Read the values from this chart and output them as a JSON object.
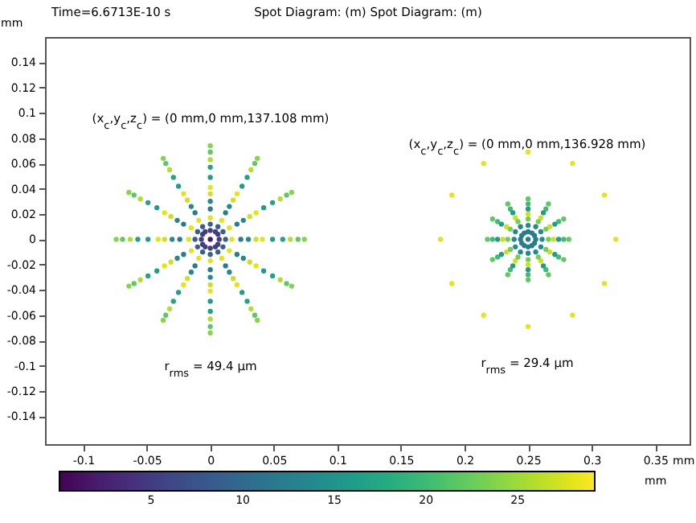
{
  "chart_data": {
    "type": "scatter",
    "title": "Spot Diagram: (m)  Spot Diagram: (m)",
    "xlabel": "mm",
    "ylabel": "mm",
    "clabel": "mm",
    "xlim": [
      -0.13,
      0.377
    ],
    "ylim": [
      -0.162,
      0.16
    ],
    "xticks": [
      -0.1,
      -0.05,
      0,
      0.05,
      0.1,
      0.15,
      0.2,
      0.25,
      0.3,
      0.35
    ],
    "yticks": [
      -0.14,
      -0.12,
      -0.1,
      -0.08,
      -0.06,
      -0.04,
      -0.02,
      0,
      0.02,
      0.04,
      0.06,
      0.08,
      0.1,
      0.12,
      0.14
    ],
    "clim": [
      0,
      29.2
    ],
    "cticks": [
      5,
      10,
      15,
      20,
      25
    ],
    "marker": "circle",
    "annotations": [
      "Time=6.6713E-10 s",
      "(x$_{c}$,y$_{c}$,z$_{c}$) = (0 mm,0 mm,137.108 mm)",
      "r$_{rms}$ = 49.4 µm",
      "(x$_{c}$,y$_{c}$,z$_{c}$) = (0 mm,0 mm,136.928 mm)",
      "r$_{rms}$ = 29.4 µm"
    ],
    "series": [
      {
        "color": "#86d549",
        "x": [
          0.074,
          0.064,
          0.037,
          0,
          -0.037,
          -0.064,
          -0.074,
          -0.064,
          -0.037,
          0,
          0.037,
          0.064
        ],
        "values": [
          0,
          0.037,
          0.064,
          0.074,
          0.064,
          0.037,
          0,
          -0.037,
          -0.064,
          -0.074,
          -0.064,
          -0.037
        ]
      },
      {
        "color": "#5ec962",
        "x": [
          0.069,
          0.06,
          0.035,
          0,
          -0.035,
          -0.06,
          -0.069,
          -0.06,
          -0.035,
          0,
          0.035,
          0.06
        ],
        "values": [
          0,
          0.035,
          0.06,
          0.069,
          0.06,
          0.035,
          0,
          -0.035,
          -0.06,
          -0.069,
          -0.06,
          -0.035
        ]
      },
      {
        "color": "#b5de2b",
        "x": [
          0.063,
          0.055,
          0.032,
          0,
          -0.032,
          -0.055,
          -0.063,
          -0.055,
          -0.032,
          0,
          0.032,
          0.055
        ],
        "values": [
          0,
          0.032,
          0.055,
          0.063,
          0.055,
          0.032,
          0,
          -0.032,
          -0.055,
          -0.063,
          -0.055,
          -0.032
        ]
      },
      {
        "color": "#20a386",
        "x": [
          0.057,
          0.049,
          0.029,
          0,
          -0.029,
          -0.049,
          -0.057,
          -0.049,
          -0.029,
          0,
          0.029,
          0.049
        ],
        "values": [
          0,
          0.029,
          0.049,
          0.057,
          0.049,
          0.029,
          0,
          -0.029,
          -0.049,
          -0.057,
          -0.049,
          -0.029
        ]
      },
      {
        "color": "#1f9d8a",
        "x": [
          0.049,
          0.042,
          0.025,
          0,
          -0.025,
          -0.042,
          -0.049,
          -0.042,
          -0.025,
          0,
          0.025,
          0.042
        ],
        "values": [
          0,
          0.025,
          0.042,
          0.049,
          0.042,
          0.025,
          0,
          -0.025,
          -0.042,
          -0.049,
          -0.042,
          -0.025
        ]
      },
      {
        "color": "#e5e419",
        "x": [
          0.041,
          0.036,
          0.021,
          0,
          -0.021,
          -0.036,
          -0.041,
          -0.036,
          -0.021,
          0,
          0.021,
          0.036
        ],
        "values": [
          0,
          0.021,
          0.036,
          0.041,
          0.036,
          0.021,
          0,
          -0.021,
          -0.036,
          -0.041,
          -0.036,
          -0.021
        ]
      },
      {
        "color": "#cde11d",
        "x": [
          0.036,
          0.031,
          0.018,
          0,
          -0.018,
          -0.031,
          -0.036,
          -0.031,
          -0.018,
          0,
          0.018,
          0.031
        ],
        "values": [
          0,
          0.018,
          0.031,
          0.036,
          0.031,
          0.018,
          0,
          -0.018,
          -0.031,
          -0.036,
          -0.031,
          -0.018
        ]
      },
      {
        "color": "#238a8d",
        "x": [
          0.03,
          0.026,
          0.015,
          0,
          -0.015,
          -0.026,
          -0.03,
          -0.026,
          -0.015,
          0,
          0.015,
          0.026
        ],
        "values": [
          0,
          0.015,
          0.026,
          0.03,
          0.026,
          0.015,
          0,
          -0.015,
          -0.026,
          -0.03,
          -0.026,
          -0.015
        ]
      },
      {
        "color": "#297b8e",
        "x": [
          0.024,
          0.021,
          0.012,
          0,
          -0.012,
          -0.021,
          -0.024,
          -0.021,
          -0.012,
          0,
          0.012,
          0.021
        ],
        "values": [
          0,
          0.012,
          0.021,
          0.024,
          0.021,
          0.012,
          0,
          -0.012,
          -0.021,
          -0.024,
          -0.021,
          -0.012
        ]
      },
      {
        "color": "#e5e419",
        "x": [
          0.017,
          0.015,
          0.009,
          0,
          -0.009,
          -0.015,
          -0.017,
          -0.015,
          -0.009,
          0,
          0.009,
          0.015
        ],
        "values": [
          0,
          0.009,
          0.015,
          0.017,
          0.015,
          0.009,
          0,
          -0.009,
          -0.015,
          -0.017,
          -0.015,
          -0.009
        ]
      },
      {
        "color": "#34618d",
        "x": [
          0.012,
          0.01,
          0.006,
          0,
          -0.006,
          -0.01,
          -0.012,
          -0.01,
          -0.006,
          0,
          0.006,
          0.01
        ],
        "values": [
          0,
          0.006,
          0.01,
          0.012,
          0.01,
          0.006,
          0,
          -0.006,
          -0.01,
          -0.012,
          -0.01,
          -0.006
        ]
      },
      {
        "color": "#433d84",
        "x": [
          0.007,
          0.006,
          0.004,
          0,
          -0.004,
          -0.006,
          -0.007,
          -0.006,
          -0.004,
          0,
          0.004,
          0.006
        ],
        "values": [
          0,
          0.004,
          0.006,
          0.007,
          0.006,
          0.004,
          0,
          -0.004,
          -0.006,
          -0.007,
          -0.006,
          -0.004
        ]
      },
      {
        "color": "#471a6c",
        "x": [
          0
        ],
        "values": [
          0
        ]
      },
      {
        "color": "#e5e419",
        "x": [
          0.319,
          0.31,
          0.285,
          0.25,
          0.215,
          0.19,
          0.181,
          0.19,
          0.215,
          0.25,
          0.285,
          0.31
        ],
        "values": [
          0,
          0.035,
          0.06,
          0.069,
          0.06,
          0.035,
          0,
          -0.035,
          -0.06,
          -0.069,
          -0.06,
          -0.035
        ]
      },
      {
        "color": "#5ec962",
        "x": [
          0.282,
          0.278,
          0.266,
          0.25,
          0.234,
          0.222,
          0.218,
          0.222,
          0.234,
          0.25,
          0.266,
          0.278
        ],
        "values": [
          0,
          0.016,
          0.028,
          0.032,
          0.028,
          0.016,
          0,
          -0.016,
          -0.028,
          -0.032,
          -0.028,
          -0.016
        ]
      },
      {
        "color": "#3fbc73",
        "x": [
          0.278,
          0.274,
          0.264,
          0.25,
          0.236,
          0.226,
          0.222,
          0.226,
          0.236,
          0.25,
          0.264,
          0.274
        ],
        "values": [
          0,
          0.014,
          0.024,
          0.028,
          0.024,
          0.014,
          0,
          -0.014,
          -0.024,
          -0.028,
          -0.024,
          -0.014
        ]
      },
      {
        "color": "#1f9d8a",
        "x": [
          0.274,
          0.271,
          0.262,
          0.25,
          0.238,
          0.229,
          0.226,
          0.229,
          0.238,
          0.25,
          0.262,
          0.271
        ],
        "values": [
          0,
          0.012,
          0.021,
          0.024,
          0.021,
          0.012,
          0,
          -0.012,
          -0.021,
          -0.024,
          -0.021,
          -0.012
        ]
      },
      {
        "color": "#cde11d",
        "x": [
          0.27,
          0.267,
          0.26,
          0.25,
          0.24,
          0.233,
          0.23,
          0.233,
          0.24,
          0.25,
          0.26,
          0.267
        ],
        "values": [
          0,
          0.01,
          0.017,
          0.02,
          0.017,
          0.01,
          0,
          -0.01,
          -0.017,
          -0.02,
          -0.017,
          -0.01
        ]
      },
      {
        "color": "#73d056",
        "x": [
          0.266,
          0.264,
          0.258,
          0.25,
          0.242,
          0.236,
          0.234,
          0.236,
          0.242,
          0.25,
          0.258,
          0.264
        ],
        "values": [
          0,
          0.008,
          0.014,
          0.016,
          0.014,
          0.008,
          0,
          -0.008,
          -0.014,
          -0.016,
          -0.014,
          -0.008
        ]
      },
      {
        "color": "#238a8d",
        "x": [
          0.261,
          0.26,
          0.256,
          0.25,
          0.244,
          0.24,
          0.239,
          0.24,
          0.244,
          0.25,
          0.256,
          0.26
        ],
        "values": [
          0,
          0.006,
          0.01,
          0.011,
          0.01,
          0.006,
          0,
          -0.006,
          -0.01,
          -0.011,
          -0.01,
          -0.006
        ]
      },
      {
        "color": "#297b8e",
        "x": [
          0.256,
          0.255,
          0.253,
          0.25,
          0.247,
          0.245,
          0.244,
          0.245,
          0.247,
          0.25,
          0.253,
          0.255,
          0.25
        ],
        "values": [
          0,
          0.003,
          0.005,
          0.006,
          0.005,
          0.003,
          0,
          -0.003,
          -0.005,
          -0.006,
          -0.005,
          -0.003,
          0
        ]
      }
    ]
  }
}
